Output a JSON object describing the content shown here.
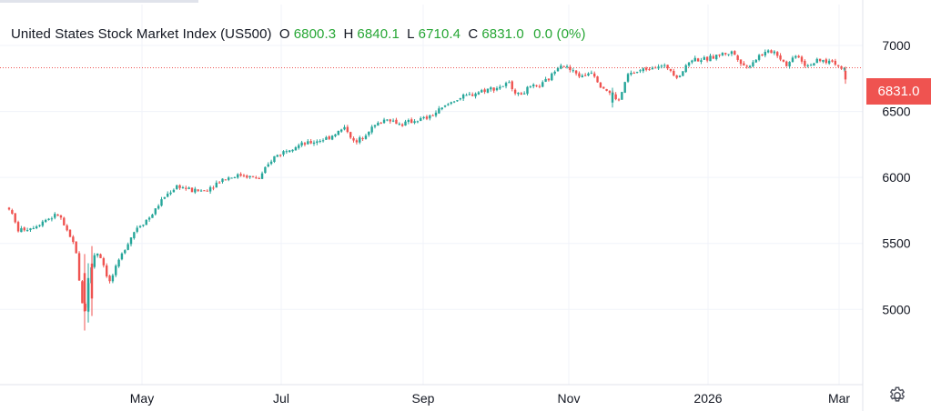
{
  "legend": {
    "title": "United States Stock Market Index (US500)",
    "o_label": "O",
    "o_value": "6800.3",
    "h_label": "H",
    "h_value": "6840.1",
    "l_label": "L",
    "l_value": "6710.4",
    "c_label": "C",
    "c_value": "6831.0",
    "change": "0.0 (0%)"
  },
  "price_tag": "6831.0",
  "colors": {
    "up": "#26a69a",
    "down": "#ef5350",
    "grid": "#f0f3fa",
    "legend_value": "#26a634"
  },
  "icons": {
    "settings": "gear-icon"
  },
  "chart_data": {
    "type": "candlestick",
    "title": "United States Stock Market Index (US500)",
    "x_tick_labels": [
      "May",
      "Jul",
      "Sep",
      "Nov",
      "2026",
      "Mar"
    ],
    "y_tick_labels": [
      "5000",
      "5500",
      "6000",
      "6500",
      "7000"
    ],
    "ylim": [
      4430,
      7310
    ],
    "last_price": 6831.0,
    "grid": true,
    "trend": [
      {
        "x": 10,
        "y": 5770
      },
      {
        "x": 20,
        "y": 5600
      },
      {
        "x": 35,
        "y": 5620
      },
      {
        "x": 50,
        "y": 5680
      },
      {
        "x": 65,
        "y": 5720
      },
      {
        "x": 75,
        "y": 5560
      },
      {
        "x": 83,
        "y": 5480
      },
      {
        "x": 88,
        "y": 5150
      },
      {
        "x": 93,
        "y": 4950
      },
      {
        "x": 98,
        "y": 5250
      },
      {
        "x": 105,
        "y": 5450
      },
      {
        "x": 112,
        "y": 5380
      },
      {
        "x": 120,
        "y": 5200
      },
      {
        "x": 128,
        "y": 5320
      },
      {
        "x": 138,
        "y": 5480
      },
      {
        "x": 150,
        "y": 5620
      },
      {
        "x": 165,
        "y": 5700
      },
      {
        "x": 180,
        "y": 5850
      },
      {
        "x": 195,
        "y": 5940
      },
      {
        "x": 210,
        "y": 5900
      },
      {
        "x": 225,
        "y": 5900
      },
      {
        "x": 245,
        "y": 5990
      },
      {
        "x": 265,
        "y": 6020
      },
      {
        "x": 285,
        "y": 5990
      },
      {
        "x": 300,
        "y": 6150
      },
      {
        "x": 320,
        "y": 6230
      },
      {
        "x": 340,
        "y": 6260
      },
      {
        "x": 360,
        "y": 6300
      },
      {
        "x": 380,
        "y": 6380
      },
      {
        "x": 390,
        "y": 6250
      },
      {
        "x": 405,
        "y": 6360
      },
      {
        "x": 425,
        "y": 6450
      },
      {
        "x": 440,
        "y": 6400
      },
      {
        "x": 455,
        "y": 6430
      },
      {
        "x": 470,
        "y": 6450
      },
      {
        "x": 485,
        "y": 6520
      },
      {
        "x": 500,
        "y": 6590
      },
      {
        "x": 515,
        "y": 6620
      },
      {
        "x": 530,
        "y": 6660
      },
      {
        "x": 545,
        "y": 6680
      },
      {
        "x": 560,
        "y": 6710
      },
      {
        "x": 570,
        "y": 6620
      },
      {
        "x": 580,
        "y": 6670
      },
      {
        "x": 595,
        "y": 6700
      },
      {
        "x": 605,
        "y": 6760
      },
      {
        "x": 615,
        "y": 6870
      },
      {
        "x": 625,
        "y": 6820
      },
      {
        "x": 640,
        "y": 6760
      },
      {
        "x": 650,
        "y": 6810
      },
      {
        "x": 660,
        "y": 6700
      },
      {
        "x": 670,
        "y": 6640
      },
      {
        "x": 680,
        "y": 6580
      },
      {
        "x": 690,
        "y": 6780
      },
      {
        "x": 705,
        "y": 6810
      },
      {
        "x": 720,
        "y": 6850
      },
      {
        "x": 735,
        "y": 6830
      },
      {
        "x": 745,
        "y": 6760
      },
      {
        "x": 760,
        "y": 6900
      },
      {
        "x": 775,
        "y": 6890
      },
      {
        "x": 790,
        "y": 6930
      },
      {
        "x": 805,
        "y": 6950
      },
      {
        "x": 820,
        "y": 6830
      },
      {
        "x": 835,
        "y": 6930
      },
      {
        "x": 850,
        "y": 6960
      },
      {
        "x": 865,
        "y": 6850
      },
      {
        "x": 875,
        "y": 6940
      },
      {
        "x": 885,
        "y": 6850
      },
      {
        "x": 900,
        "y": 6880
      },
      {
        "x": 915,
        "y": 6880
      },
      {
        "x": 925,
        "y": 6820
      },
      {
        "x": 930,
        "y": 6831
      }
    ],
    "spikes": [
      {
        "x": 93,
        "h": 5420,
        "l": 4840
      },
      {
        "x": 97,
        "h": 5350,
        "l": 4900
      },
      {
        "x": 101,
        "h": 5480,
        "l": 4950
      },
      {
        "x": 673,
        "h": 6680,
        "l": 6530
      },
      {
        "x": 929,
        "h": 6840,
        "l": 6710
      }
    ]
  }
}
